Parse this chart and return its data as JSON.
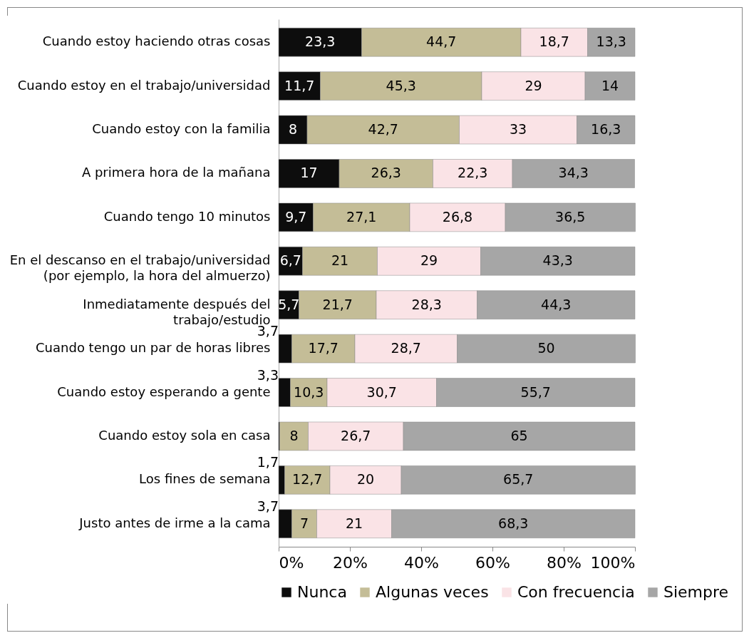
{
  "chart_data": {
    "type": "bar",
    "orientation": "horizontal",
    "stacked": true,
    "categories": [
      "Cuando estoy haciendo otras cosas",
      "Cuando estoy en el trabajo/universidad",
      "Cuando estoy con la familia",
      "A primera hora de la mañana",
      "Cuando tengo 10 minutos",
      "En el descanso en el trabajo/universidad (por ejemplo, la hora del almuerzo)",
      "Inmediatamente después del trabajo/estudio",
      "Cuando tengo un par de horas libres",
      "Cuando estoy esperando a gente",
      "Cuando estoy sola en casa",
      "Los fines de semana",
      "Justo antes de irme a la cama"
    ],
    "series": [
      {
        "name": "Nunca",
        "color": "#0d0d0d",
        "values": [
          23.3,
          11.7,
          8,
          17,
          9.7,
          6.7,
          5.7,
          3.7,
          3.3,
          0.3,
          1.7,
          3.7
        ],
        "value_labels": [
          "23,3",
          "11,7",
          "8",
          "17",
          "9,7",
          "6,7",
          "5,7",
          "3,7",
          "3,3",
          null,
          "1,7",
          "3,7"
        ]
      },
      {
        "name": "Algunas veces",
        "color": "#c4bd97",
        "values": [
          44.7,
          45.3,
          42.7,
          26.3,
          27.1,
          21,
          21.7,
          17.7,
          10.3,
          8,
          12.7,
          7
        ],
        "value_labels": [
          "44,7",
          "45,3",
          "42,7",
          "26,3",
          "27,1",
          "21",
          "21,7",
          "17,7",
          "10,3",
          "8",
          "12,7",
          "7"
        ]
      },
      {
        "name": "Con frecuencia",
        "color": "#fae3e6",
        "values": [
          18.7,
          29,
          33,
          22.3,
          26.8,
          29,
          28.3,
          28.7,
          30.7,
          26.7,
          20,
          21
        ],
        "value_labels": [
          "18,7",
          "29",
          "33",
          "22,3",
          "26,8",
          "29",
          "28,3",
          "28,7",
          "30,7",
          "26,7",
          "20",
          "21"
        ]
      },
      {
        "name": "Siempre",
        "color": "#a6a6a6",
        "values": [
          13.3,
          14,
          16.3,
          34.3,
          36.5,
          43.3,
          44.3,
          50,
          55.7,
          65,
          65.7,
          68.3
        ],
        "value_labels": [
          "13,3",
          "14",
          "16,3",
          "34,3",
          "36,5",
          "43,3",
          "44,3",
          "50",
          "55,7",
          "65",
          "65,7",
          "68,3"
        ]
      }
    ],
    "xlim": [
      0,
      100
    ],
    "xticks": [
      {
        "value": 0,
        "label": "0%"
      },
      {
        "value": 20,
        "label": "20%"
      },
      {
        "value": 40,
        "label": "40%"
      },
      {
        "value": 60,
        "label": "60%"
      },
      {
        "value": 80,
        "label": "80%"
      },
      {
        "value": 100,
        "label": "100%"
      }
    ],
    "grid": false,
    "legend": "bottom"
  }
}
